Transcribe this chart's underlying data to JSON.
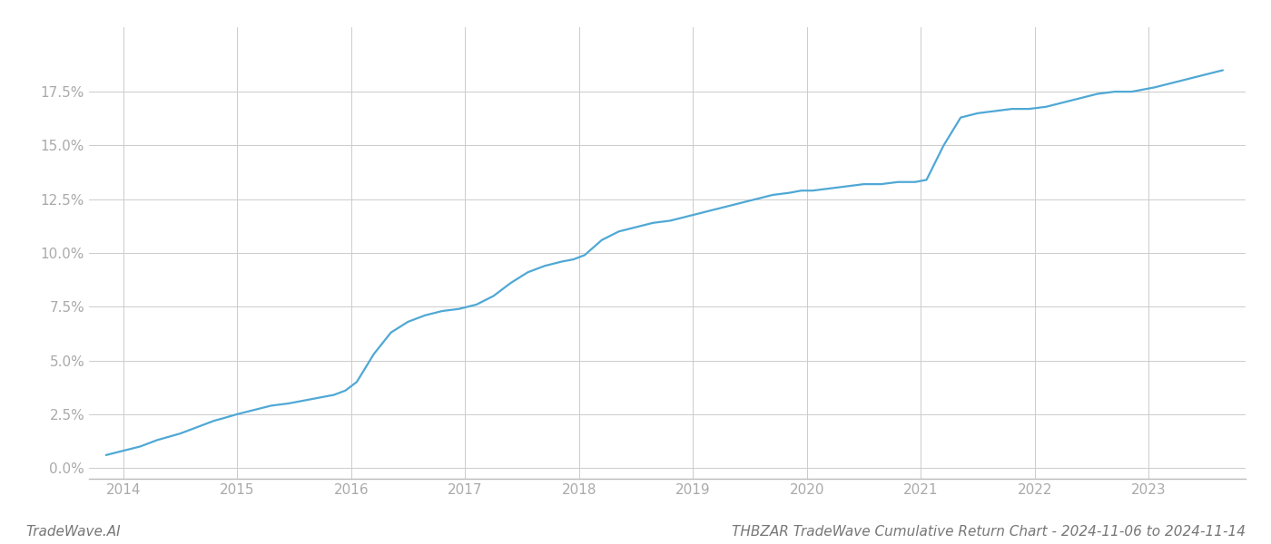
{
  "title": "THBZAR TradeWave Cumulative Return Chart - 2024-11-06 to 2024-11-14",
  "watermark": "TradeWave.AI",
  "line_color": "#4fa8d5",
  "background_color": "#ffffff",
  "grid_color": "#cccccc",
  "x_data": [
    2013.85,
    2014.0,
    2014.15,
    2014.3,
    2014.5,
    2014.65,
    2014.8,
    2014.87,
    2015.0,
    2015.15,
    2015.3,
    2015.45,
    2015.55,
    2015.65,
    2015.75,
    2015.85,
    2015.95,
    2016.05,
    2016.2,
    2016.35,
    2016.5,
    2016.65,
    2016.8,
    2016.95,
    2017.1,
    2017.25,
    2017.4,
    2017.55,
    2017.7,
    2017.85,
    2017.95,
    2018.05,
    2018.2,
    2018.35,
    2018.5,
    2018.65,
    2018.8,
    2018.95,
    2019.1,
    2019.25,
    2019.4,
    2019.55,
    2019.7,
    2019.85,
    2019.95,
    2020.05,
    2020.2,
    2020.35,
    2020.5,
    2020.65,
    2020.8,
    2020.95,
    2021.05,
    2021.2,
    2021.35,
    2021.5,
    2021.65,
    2021.8,
    2021.95,
    2022.1,
    2022.25,
    2022.4,
    2022.55,
    2022.7,
    2022.85,
    2022.95,
    2023.05,
    2023.2,
    2023.35,
    2023.5,
    2023.65
  ],
  "y_data": [
    0.006,
    0.008,
    0.01,
    0.013,
    0.016,
    0.019,
    0.022,
    0.023,
    0.025,
    0.027,
    0.029,
    0.03,
    0.031,
    0.032,
    0.033,
    0.034,
    0.036,
    0.04,
    0.053,
    0.063,
    0.068,
    0.071,
    0.073,
    0.074,
    0.076,
    0.08,
    0.086,
    0.091,
    0.094,
    0.096,
    0.097,
    0.099,
    0.106,
    0.11,
    0.112,
    0.114,
    0.115,
    0.117,
    0.119,
    0.121,
    0.123,
    0.125,
    0.127,
    0.128,
    0.129,
    0.129,
    0.13,
    0.131,
    0.132,
    0.132,
    0.133,
    0.133,
    0.134,
    0.15,
    0.163,
    0.165,
    0.166,
    0.167,
    0.167,
    0.168,
    0.17,
    0.172,
    0.174,
    0.175,
    0.175,
    0.176,
    0.177,
    0.179,
    0.181,
    0.183,
    0.185
  ],
  "xlim": [
    2013.7,
    2023.85
  ],
  "ylim": [
    -0.005,
    0.205
  ],
  "yticks": [
    0.0,
    0.025,
    0.05,
    0.075,
    0.1,
    0.125,
    0.15,
    0.175
  ],
  "xtick_labels": [
    "2014",
    "2015",
    "2016",
    "2017",
    "2018",
    "2019",
    "2020",
    "2021",
    "2022",
    "2023"
  ],
  "xtick_positions": [
    2014,
    2015,
    2016,
    2017,
    2018,
    2019,
    2020,
    2021,
    2022,
    2023
  ],
  "title_fontsize": 11,
  "watermark_fontsize": 11,
  "tick_label_color": "#aaaaaa",
  "line_width": 1.6
}
